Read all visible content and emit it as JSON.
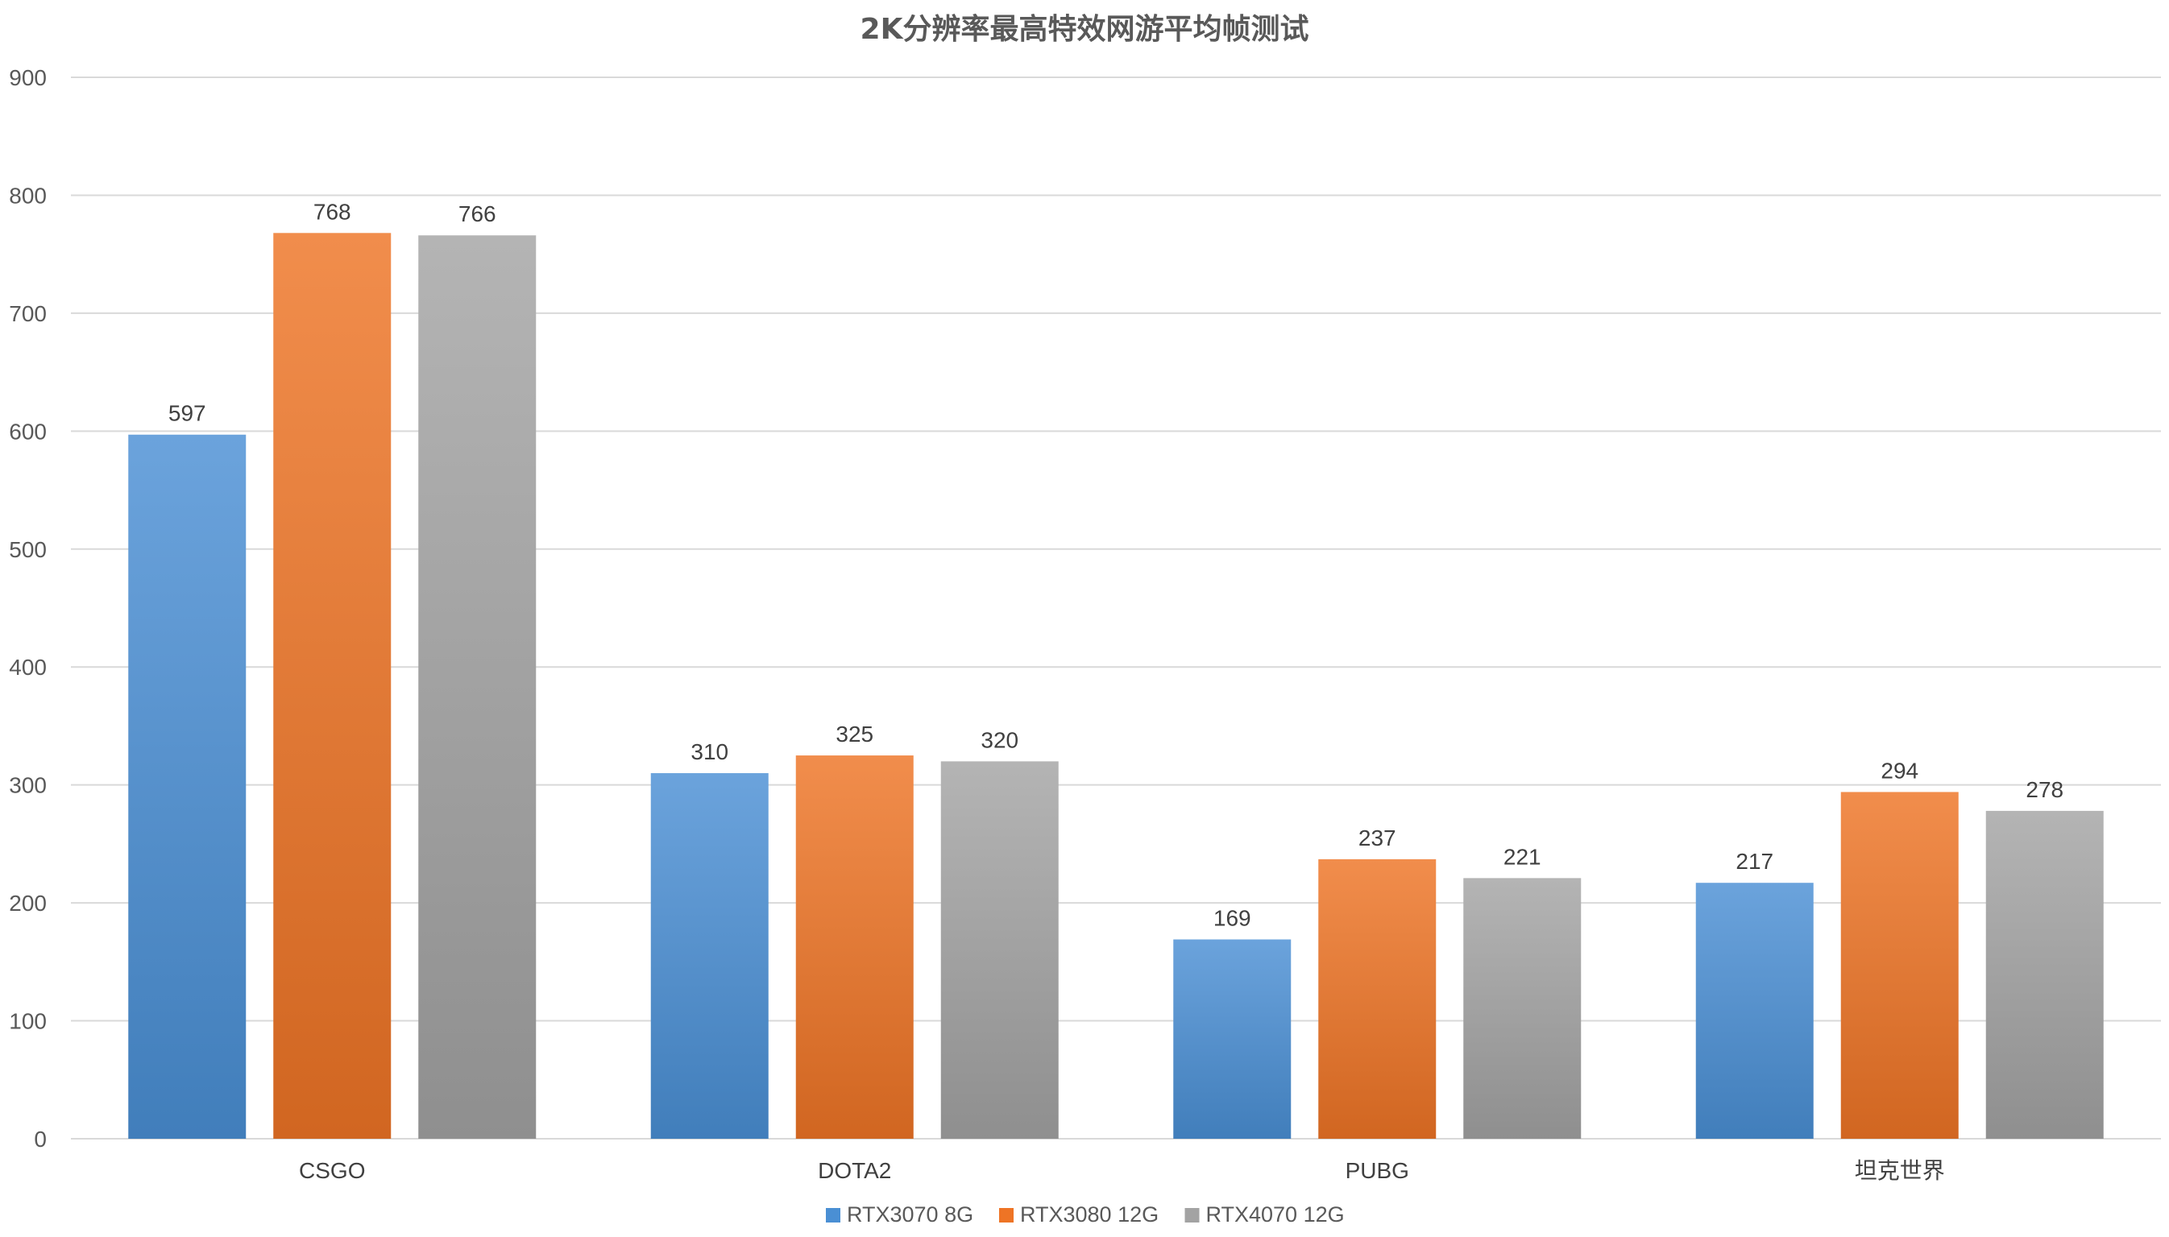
{
  "chart_data": {
    "type": "bar",
    "title": "2K分辨率最高特效网游平均帧测试",
    "xlabel": "",
    "ylabel": "",
    "ylim": [
      0,
      900
    ],
    "yticks": [
      0,
      100,
      200,
      300,
      400,
      500,
      600,
      700,
      800,
      900
    ],
    "grid": true,
    "legend_position": "bottom",
    "categories": [
      "CSGO",
      "DOTA2",
      "PUBG",
      "坦克世界"
    ],
    "series": [
      {
        "name": "RTX3070 8G",
        "color": "#4a8fd4",
        "values": [
          597,
          310,
          169,
          217
        ]
      },
      {
        "name": "RTX3080 12G",
        "color": "#ee7425",
        "values": [
          768,
          325,
          237,
          294
        ]
      },
      {
        "name": "RTX4070 12G",
        "color": "#a3a3a3",
        "values": [
          766,
          320,
          221,
          278
        ]
      }
    ]
  }
}
